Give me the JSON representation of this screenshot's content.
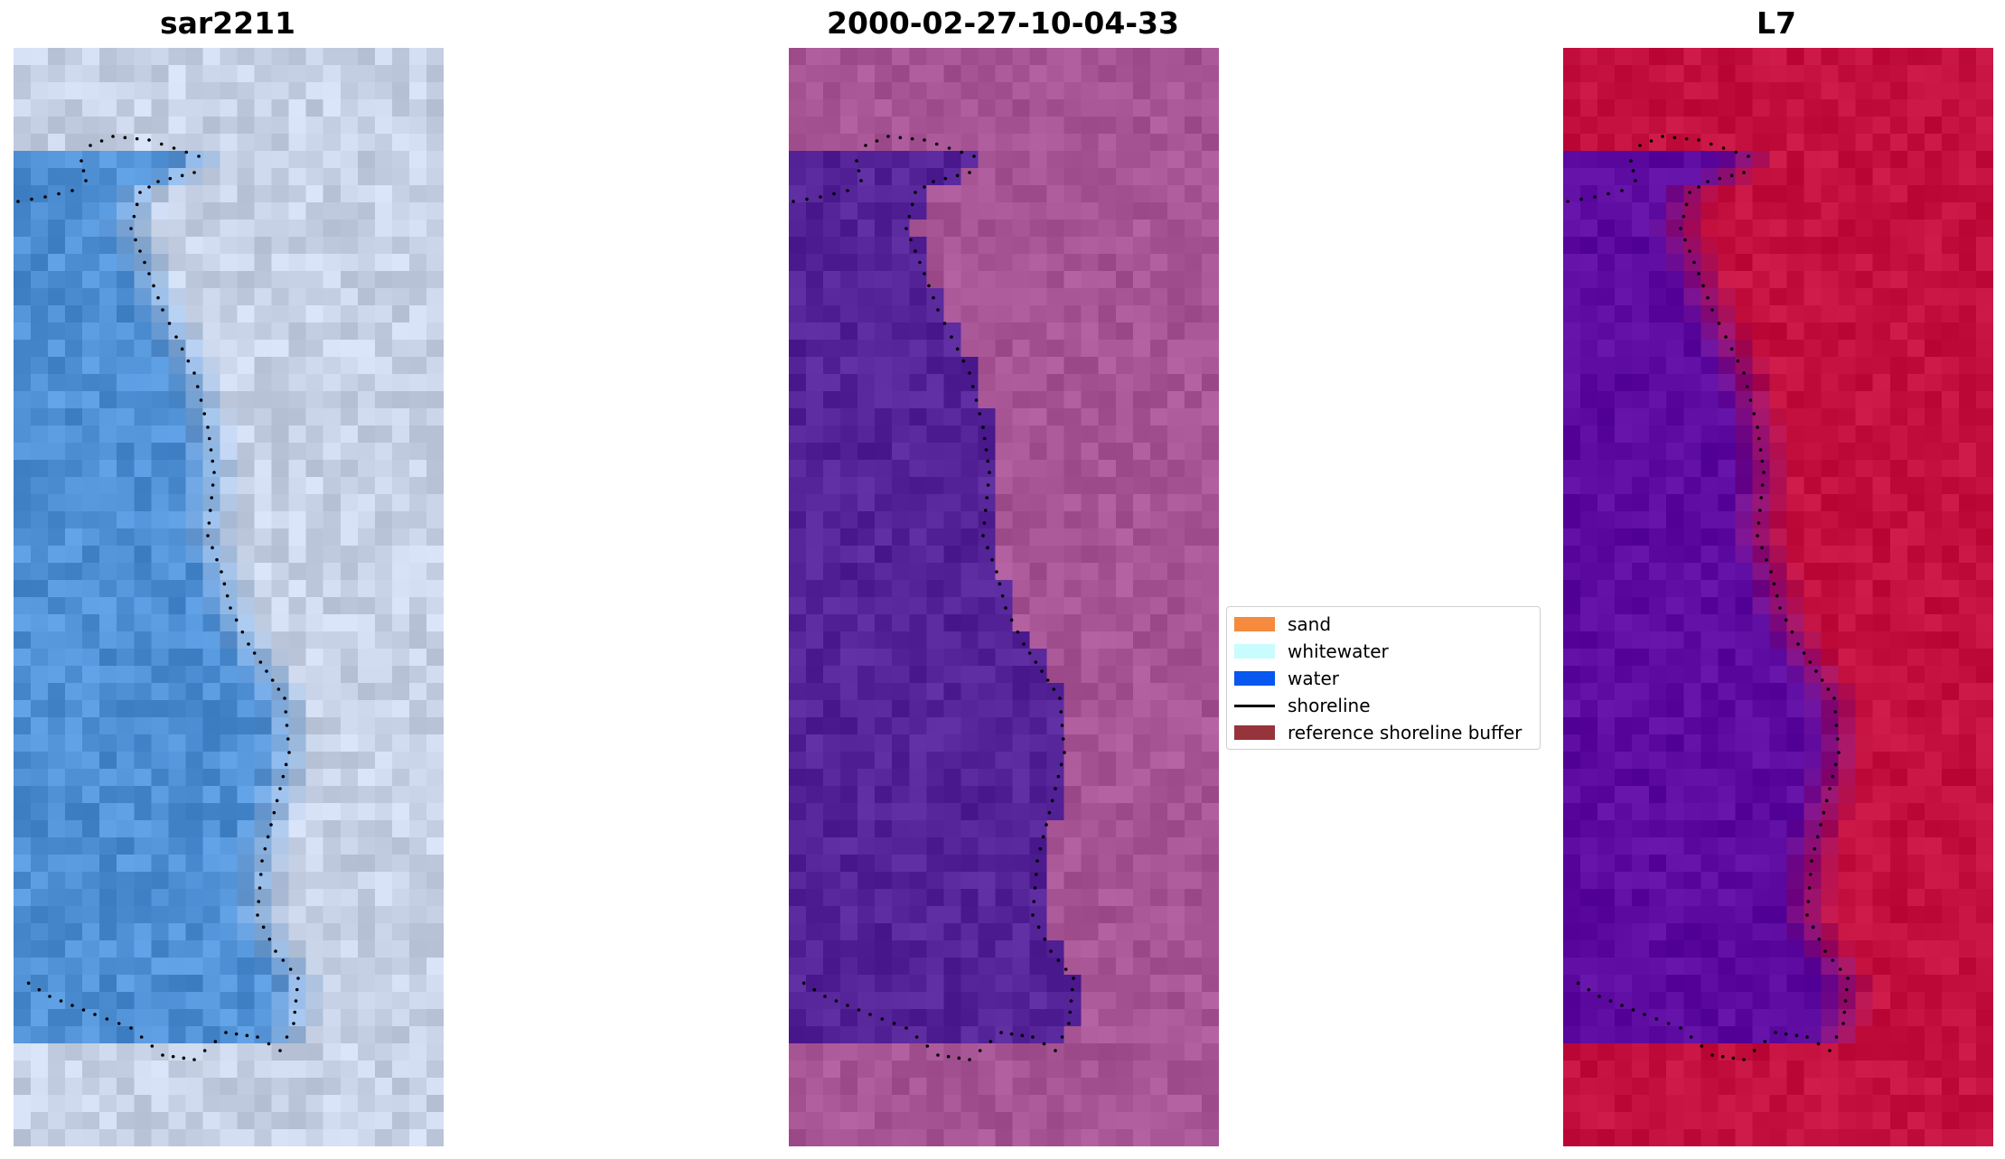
{
  "panels": [
    {
      "title": "sar2211",
      "kind": "rgb"
    },
    {
      "title": "2000-02-27-10-04-33",
      "kind": "classified"
    },
    {
      "title": "L7",
      "kind": "index"
    }
  ],
  "legend": {
    "items": [
      {
        "label": "sand",
        "color": "#f68a3e",
        "type": "patch"
      },
      {
        "label": "whitewater",
        "color": "#c8fcff",
        "type": "patch"
      },
      {
        "label": "water",
        "color": "#0857ee",
        "type": "patch"
      },
      {
        "label": "shoreline",
        "color": "#000000",
        "type": "line"
      },
      {
        "label": "reference shoreline buffer",
        "color": "#97333a",
        "type": "patch"
      }
    ]
  },
  "colors": {
    "water_class": "#532397",
    "rgb_water": "#4f8fd4",
    "rgb_land": "#c7d2e6",
    "index_water": "#5c0aa0",
    "index_land": "#c4103e",
    "classified_land": "#a85596"
  }
}
